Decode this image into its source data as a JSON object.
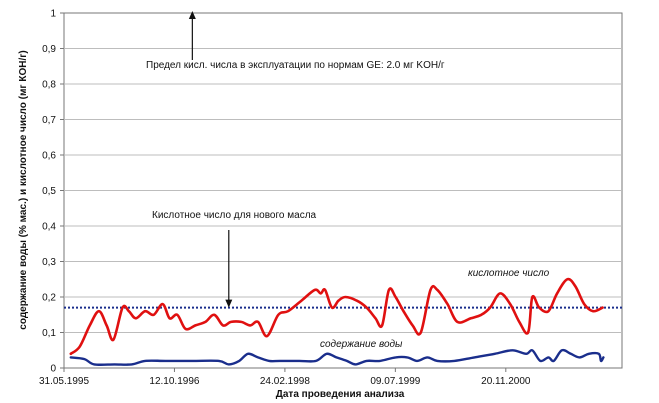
{
  "chart_data": {
    "type": "line",
    "ylabel": "содержание воды (% мас.) и кислотное число (мг КОН/г)",
    "xlabel": "Дата проведения анализа",
    "ylim": [
      0,
      1
    ],
    "yticks": [
      "0",
      "0,1",
      "0,2",
      "0,3",
      "0,4",
      "0,5",
      "0,6",
      "0,7",
      "0,8",
      "0,9",
      "1"
    ],
    "xlim": [
      "1995-05-31",
      "2002-04-30"
    ],
    "xticks": [
      {
        "date": "1995-05-31",
        "label": "31.05.1995"
      },
      {
        "date": "1996-10-12",
        "label": "12.10.1996"
      },
      {
        "date": "1998-02-24",
        "label": "24.02.1998"
      },
      {
        "date": "1999-07-09",
        "label": "09.07.1999"
      },
      {
        "date": "2000-11-20",
        "label": "20.11.2000"
      }
    ],
    "grid": "horizontal",
    "series": [
      {
        "name": "кислотное число",
        "color": "#e01010",
        "points": [
          [
            "1995-07-01",
            0.04
          ],
          [
            "1995-08-10",
            0.06
          ],
          [
            "1995-09-25",
            0.12
          ],
          [
            "1995-11-05",
            0.16
          ],
          [
            "1995-12-10",
            0.12
          ],
          [
            "1996-01-10",
            0.08
          ],
          [
            "1996-02-20",
            0.17
          ],
          [
            "1996-03-20",
            0.16
          ],
          [
            "1996-04-20",
            0.14
          ],
          [
            "1996-06-01",
            0.16
          ],
          [
            "1996-07-10",
            0.15
          ],
          [
            "1996-08-20",
            0.18
          ],
          [
            "1996-09-20",
            0.14
          ],
          [
            "1996-10-25",
            0.15
          ],
          [
            "1996-12-01",
            0.11
          ],
          [
            "1997-01-15",
            0.12
          ],
          [
            "1997-03-01",
            0.13
          ],
          [
            "1997-04-10",
            0.15
          ],
          [
            "1997-05-20",
            0.12
          ],
          [
            "1997-06-25",
            0.13
          ],
          [
            "1997-08-10",
            0.13
          ],
          [
            "1997-09-20",
            0.12
          ],
          [
            "1997-10-25",
            0.13
          ],
          [
            "1997-12-05",
            0.09
          ],
          [
            "1998-01-25",
            0.15
          ],
          [
            "1998-03-10",
            0.16
          ],
          [
            "1998-05-10",
            0.19
          ],
          [
            "1998-07-10",
            0.22
          ],
          [
            "1998-08-05",
            0.21
          ],
          [
            "1998-08-25",
            0.22
          ],
          [
            "1998-09-25",
            0.17
          ],
          [
            "1998-10-25",
            0.19
          ],
          [
            "1998-11-25",
            0.2
          ],
          [
            "1999-01-15",
            0.19
          ],
          [
            "1999-03-01",
            0.17
          ],
          [
            "1999-04-10",
            0.14
          ],
          [
            "1999-05-10",
            0.12
          ],
          [
            "1999-06-10",
            0.22
          ],
          [
            "1999-07-10",
            0.2
          ],
          [
            "1999-08-15",
            0.16
          ],
          [
            "1999-09-25",
            0.12
          ],
          [
            "1999-11-01",
            0.1
          ],
          [
            "1999-12-15",
            0.22
          ],
          [
            "2000-01-15",
            0.22
          ],
          [
            "2000-03-01",
            0.18
          ],
          [
            "2000-04-15",
            0.13
          ],
          [
            "2000-06-15",
            0.14
          ],
          [
            "2000-08-01",
            0.15
          ],
          [
            "2000-09-10",
            0.17
          ],
          [
            "2000-10-25",
            0.21
          ],
          [
            "2000-12-10",
            0.18
          ],
          [
            "2001-01-20",
            0.13
          ],
          [
            "2001-03-01",
            0.1
          ],
          [
            "2001-03-20",
            0.2
          ],
          [
            "2001-04-20",
            0.17
          ],
          [
            "2001-06-01",
            0.16
          ],
          [
            "2001-07-10",
            0.21
          ],
          [
            "2001-08-25",
            0.25
          ],
          [
            "2001-10-01",
            0.23
          ],
          [
            "2001-11-10",
            0.18
          ],
          [
            "2001-12-20",
            0.16
          ],
          [
            "2002-02-01",
            0.17
          ]
        ]
      },
      {
        "name": "содержание воды",
        "color": "#1a2e8c",
        "points": [
          [
            "1995-07-01",
            0.03
          ],
          [
            "1995-09-01",
            0.025
          ],
          [
            "1995-10-15",
            0.01
          ],
          [
            "1996-01-15",
            0.01
          ],
          [
            "1996-04-01",
            0.01
          ],
          [
            "1996-06-01",
            0.02
          ],
          [
            "1996-09-01",
            0.02
          ],
          [
            "1997-01-01",
            0.02
          ],
          [
            "1997-05-01",
            0.02
          ],
          [
            "1997-06-15",
            0.01
          ],
          [
            "1997-08-01",
            0.02
          ],
          [
            "1997-09-10",
            0.04
          ],
          [
            "1997-10-25",
            0.03
          ],
          [
            "1997-12-15",
            0.02
          ],
          [
            "1998-02-01",
            0.02
          ],
          [
            "1998-05-01",
            0.02
          ],
          [
            "1998-07-15",
            0.02
          ],
          [
            "1998-09-01",
            0.04
          ],
          [
            "1998-10-15",
            0.03
          ],
          [
            "1998-12-01",
            0.02
          ],
          [
            "1999-01-10",
            0.01
          ],
          [
            "1999-03-01",
            0.02
          ],
          [
            "1999-05-01",
            0.02
          ],
          [
            "1999-07-10",
            0.03
          ],
          [
            "1999-09-01",
            0.03
          ],
          [
            "1999-10-15",
            0.02
          ],
          [
            "1999-12-01",
            0.03
          ],
          [
            "2000-01-15",
            0.02
          ],
          [
            "2000-04-01",
            0.02
          ],
          [
            "2000-07-01",
            0.03
          ],
          [
            "2000-10-01",
            0.04
          ],
          [
            "2000-12-20",
            0.05
          ],
          [
            "2001-02-20",
            0.04
          ],
          [
            "2001-03-20",
            0.05
          ],
          [
            "2001-04-25",
            0.02
          ],
          [
            "2001-06-01",
            0.03
          ],
          [
            "2001-06-25",
            0.02
          ],
          [
            "2001-08-01",
            0.05
          ],
          [
            "2001-09-10",
            0.04
          ],
          [
            "2001-10-20",
            0.03
          ],
          [
            "2001-12-01",
            0.04
          ],
          [
            "2002-01-15",
            0.04
          ],
          [
            "2002-01-25",
            0.02
          ],
          [
            "2002-02-05",
            0.03
          ]
        ]
      }
    ],
    "reference_lines": [
      {
        "y": 0.17,
        "style": "dotted",
        "color": "#1a2e8c"
      }
    ],
    "annotations": [
      {
        "text": "Предел кисл. числа в эксплуатации по нормам GE: 2.0 мг KOH/г",
        "arrow": "up",
        "arrow_x": "1997-01-01"
      },
      {
        "text": "Кислотное число для нового масла",
        "arrow": "down",
        "arrow_x": "1997-06-15",
        "arrow_to_y": 0.17
      }
    ]
  }
}
